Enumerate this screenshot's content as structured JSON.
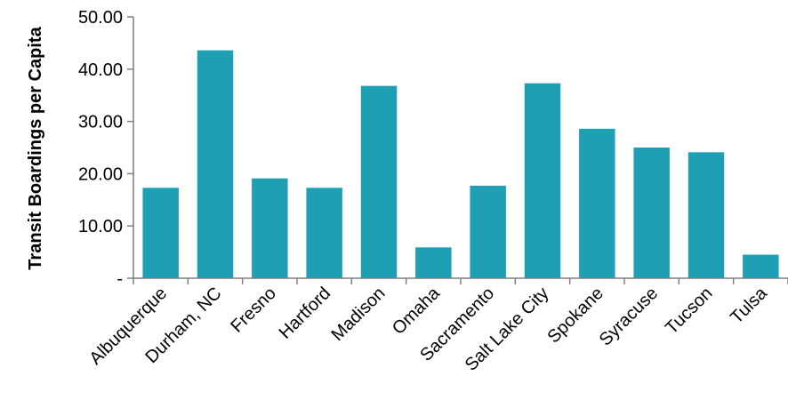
{
  "chart_data": {
    "type": "bar",
    "title": "",
    "xlabel": "",
    "ylabel": "Transit Boardings per Capita",
    "categories": [
      "Albuquerque",
      "Durham, NC",
      "Fresno",
      "Hartford",
      "Madison",
      "Omaha",
      "Sacramento",
      "Salt Lake City",
      "Spokane",
      "Syracuse",
      "Tucson",
      "Tulsa"
    ],
    "values": [
      17.3,
      43.6,
      19.1,
      17.3,
      36.8,
      5.9,
      17.7,
      37.3,
      28.6,
      25.0,
      24.1,
      4.5
    ],
    "ylim": [
      0,
      50
    ],
    "yticks": [
      0,
      10,
      20,
      30,
      40,
      50
    ],
    "ytick_labels": [
      "-",
      "10.00",
      "20.00",
      "30.00",
      "40.00",
      "50.00"
    ],
    "grid": false,
    "legend": "none",
    "bar_color": "#1f9fb4"
  }
}
